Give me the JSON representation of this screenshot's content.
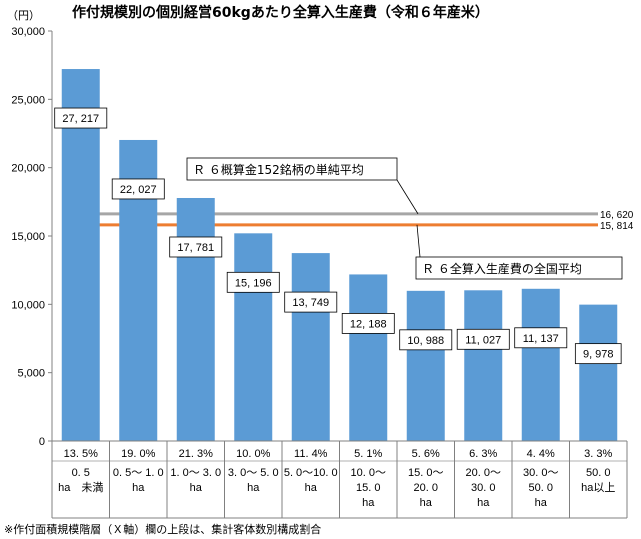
{
  "chart_data": {
    "type": "bar",
    "title": "作付規模別の個別経営60kgあたり全算入生産費（令和６年産米）",
    "ylabel": "（円）",
    "ylim": [
      0,
      30000
    ],
    "yticks": [
      "0",
      "5,000",
      "10,000",
      "15,000",
      "20,000",
      "25,000",
      "30,000"
    ],
    "ytick_values": [
      0,
      5000,
      10000,
      15000,
      20000,
      25000,
      30000
    ],
    "grid": false,
    "series": [
      {
        "name": "60kgあたり全算入生産費",
        "color": "#5b9bd5",
        "values": [
          27217,
          22027,
          17781,
          15196,
          13749,
          12188,
          10988,
          11027,
          11137,
          9978
        ],
        "labels": [
          "27, 217",
          "22, 027",
          "17, 781",
          "15, 196",
          "13, 749",
          "12, 188",
          "10, 988",
          "11, 027",
          "11, 137",
          "9, 978"
        ]
      }
    ],
    "categories": [
      {
        "share": "13. 5%",
        "range": [
          "0. 5",
          "ha　未満"
        ]
      },
      {
        "share": "19. 0%",
        "range": [
          "0. 5～ 1. 0",
          "ha"
        ]
      },
      {
        "share": "21. 3%",
        "range": [
          "1. 0～ 3. 0",
          "ha"
        ]
      },
      {
        "share": "10. 0%",
        "range": [
          "3. 0～ 5. 0",
          "ha"
        ]
      },
      {
        "share": "11. 4%",
        "range": [
          "5. 0～10. 0",
          "ha"
        ]
      },
      {
        "share": "5. 1%",
        "range": [
          "10. 0～",
          "15. 0",
          "ha"
        ]
      },
      {
        "share": "5. 6%",
        "range": [
          "15. 0～",
          "20. 0",
          "ha"
        ]
      },
      {
        "share": "6. 3%",
        "range": [
          "20. 0～",
          "30. 0",
          "ha"
        ]
      },
      {
        "share": "4. 4%",
        "range": [
          "30. 0～",
          "50. 0",
          "ha"
        ]
      },
      {
        "share": "3. 3%",
        "range": [
          "50. 0",
          "ha以上"
        ]
      }
    ],
    "reference_lines": [
      {
        "name": "Ｒ ６概算金152銘柄の単純平均",
        "value": 16620,
        "label": "16, 620",
        "color": "#a6a6a6"
      },
      {
        "name": "Ｒ ６全算入生産費の全国平均",
        "value": 15814,
        "label": "15, 814",
        "color": "#ed7d31"
      }
    ],
    "footnote": "※作付面積規模階層（Ｘ軸）欄の上段は、集計客体数別構成割合"
  }
}
